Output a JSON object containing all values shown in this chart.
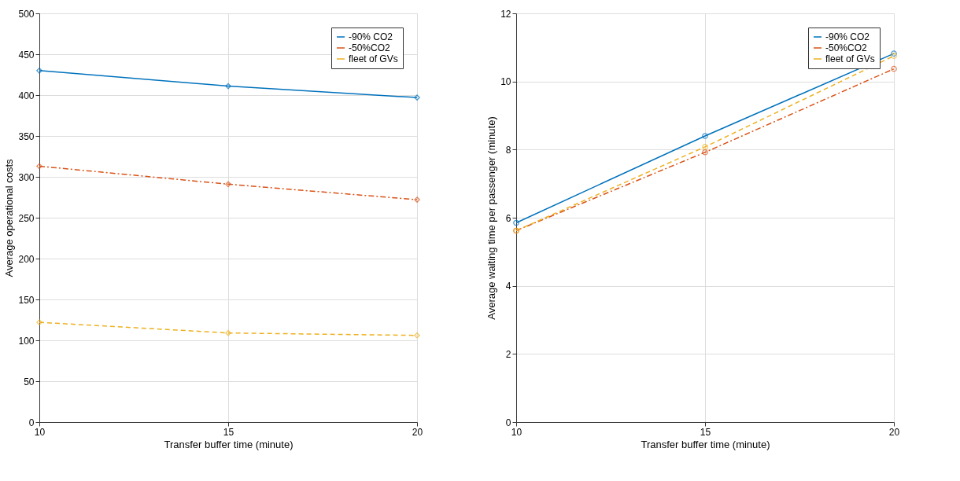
{
  "chart_data": [
    {
      "type": "line",
      "x": [
        10,
        15,
        20
      ],
      "xlabel": "Transfer buffer time (minute)",
      "ylabel": "Average operational costs",
      "xlim": [
        10,
        20
      ],
      "xticks": [
        10,
        15,
        20
      ],
      "ylim": [
        0,
        500
      ],
      "yticks": [
        0,
        50,
        100,
        150,
        200,
        250,
        300,
        350,
        400,
        450,
        500
      ],
      "grid": true,
      "legend": "top right",
      "marker": "diamond",
      "series": [
        {
          "name": "-90% CO2",
          "color": "#0072bd",
          "line_style": "solid",
          "values": [
            430,
            411,
            397
          ]
        },
        {
          "name": "-50%CO2",
          "color": "#d95319",
          "line_style": "dashdot",
          "values": [
            313,
            291,
            272
          ]
        },
        {
          "name": "fleet of GVs",
          "color": "#edb120",
          "line_style": "dashed",
          "values": [
            122,
            109,
            106
          ]
        }
      ]
    },
    {
      "type": "line",
      "x": [
        10,
        15,
        20
      ],
      "xlabel": "Transfer buffer time (minute)",
      "ylabel": "Average waiting time per passenger (minute)",
      "xlim": [
        10,
        20
      ],
      "xticks": [
        10,
        15,
        20
      ],
      "ylim": [
        0,
        12
      ],
      "yticks": [
        0,
        2,
        4,
        6,
        8,
        10,
        12
      ],
      "grid": true,
      "legend": "top right",
      "marker": "circle",
      "series": [
        {
          "name": "-90% CO2",
          "color": "#0072bd",
          "line_style": "solid",
          "values": [
            5.85,
            8.4,
            10.82
          ]
        },
        {
          "name": "-50%CO2",
          "color": "#d95319",
          "line_style": "dashdot",
          "values": [
            5.62,
            7.92,
            10.37
          ]
        },
        {
          "name": "fleet of GVs",
          "color": "#edb120",
          "line_style": "dashed",
          "values": [
            5.62,
            8.08,
            10.75
          ]
        }
      ]
    }
  ]
}
